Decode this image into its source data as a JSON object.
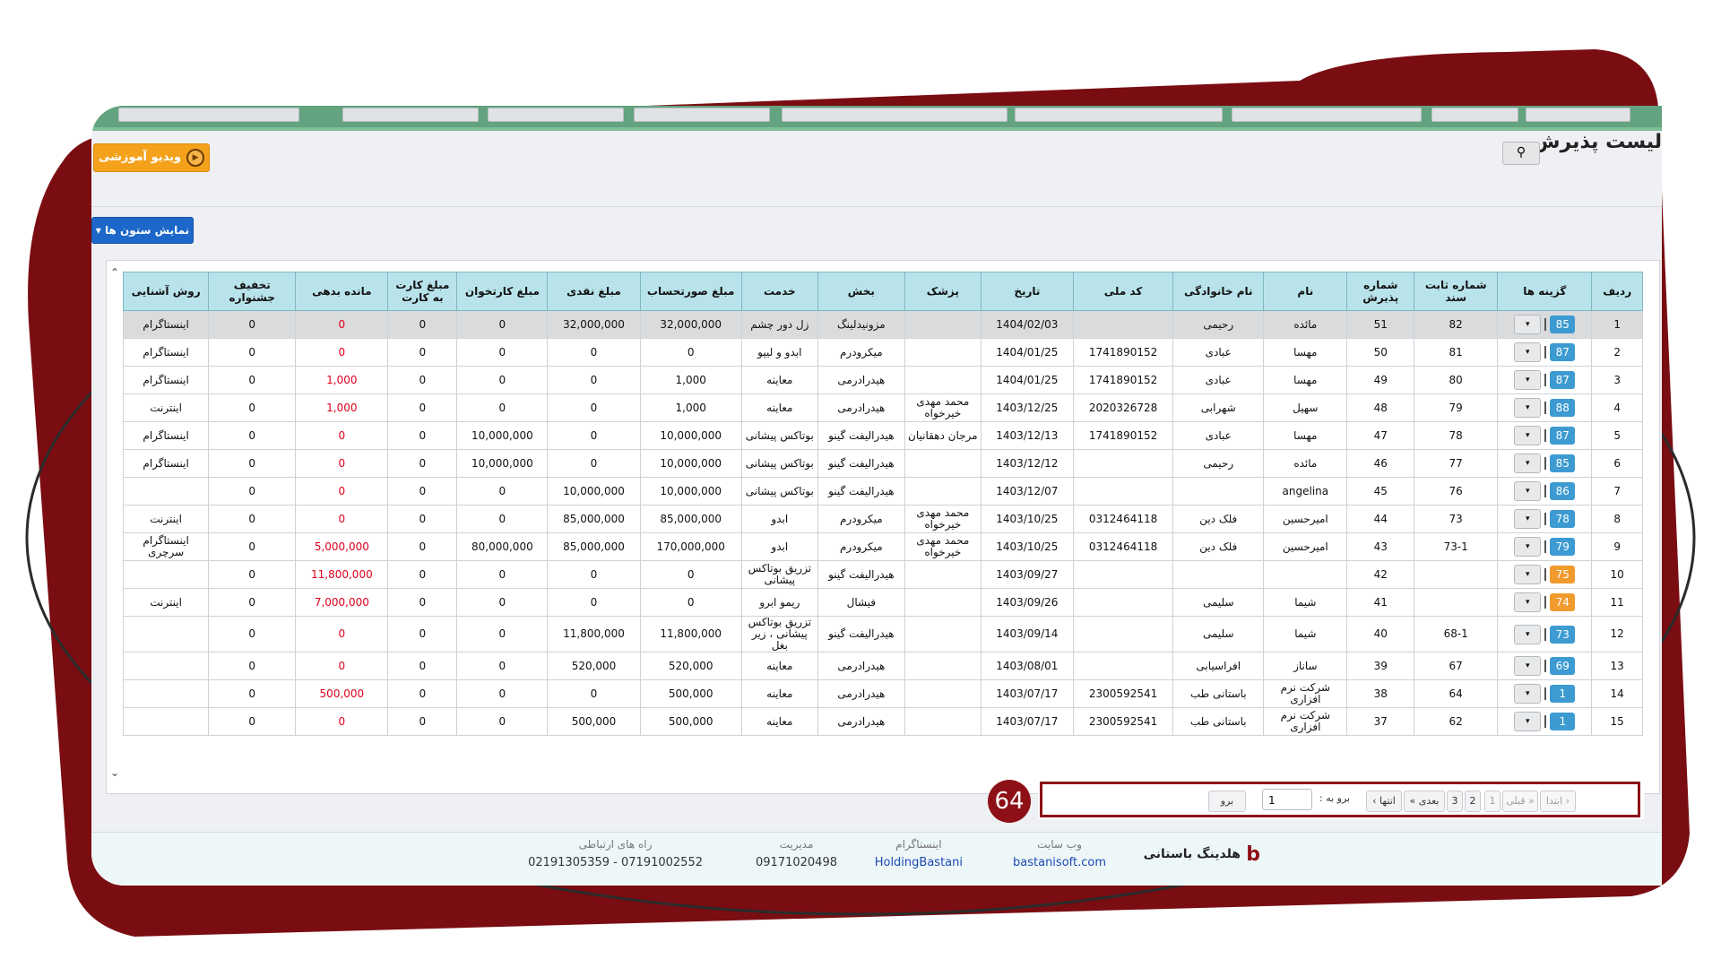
{
  "page": {
    "title": "لیست پذیرش",
    "video_button": "ویدیو آموزشی",
    "columns_button": "نمایش ستون ها"
  },
  "table": {
    "headers": [
      "ردیف",
      "گزینه ها",
      "شماره ثابت سند",
      "شماره پذیرش",
      "نام",
      "نام خانوادگی",
      "کد ملی",
      "تاریخ",
      "پزشک",
      "بخش",
      "خدمت",
      "مبلغ صورتحساب",
      "مبلغ نقدی",
      "مبلغ کارتخوان",
      "مبلغ کارت به کارت",
      "مانده بدهی",
      "تخفیف جشنواره",
      "روش آشنایی"
    ],
    "rows": [
      {
        "n": "1",
        "badge": "85",
        "color": "blue",
        "sanad": "82",
        "paz": "51",
        "name": "مائده",
        "family": "رحیمی",
        "code": "",
        "date": "1404/02/03",
        "doctor": "",
        "dept": "مزونیدلینگ",
        "service": "زل دور چشم",
        "bill": "32,000,000",
        "cash": "32,000,000",
        "pos": "0",
        "c2c": "0",
        "debt": "0",
        "disc": "0",
        "source": "اینستاگرام"
      },
      {
        "n": "2",
        "badge": "87",
        "color": "blue",
        "sanad": "81",
        "paz": "50",
        "name": "مهسا",
        "family": "عبادی",
        "code": "1741890152",
        "date": "1404/01/25",
        "doctor": "",
        "dept": "میکرودرم",
        "service": "ابدو و لیپو",
        "bill": "0",
        "cash": "0",
        "pos": "0",
        "c2c": "0",
        "debt": "0",
        "disc": "0",
        "source": "اینستاگرام"
      },
      {
        "n": "3",
        "badge": "87",
        "color": "blue",
        "sanad": "80",
        "paz": "49",
        "name": "مهسا",
        "family": "عبادی",
        "code": "1741890152",
        "date": "1404/01/25",
        "doctor": "",
        "dept": "هیدرادرمی",
        "service": "معاینه",
        "bill": "1,000",
        "cash": "0",
        "pos": "0",
        "c2c": "0",
        "debt": "1,000",
        "disc": "0",
        "source": "اینستاگرام"
      },
      {
        "n": "4",
        "badge": "88",
        "color": "blue",
        "sanad": "79",
        "paz": "48",
        "name": "سهیل",
        "family": "شهرابی",
        "code": "2020326728",
        "date": "1403/12/25",
        "doctor": "محمد مهدی خیرخواه",
        "dept": "هیدرادرمی",
        "service": "معاینه",
        "bill": "1,000",
        "cash": "0",
        "pos": "0",
        "c2c": "0",
        "debt": "1,000",
        "disc": "0",
        "source": "اینترنت"
      },
      {
        "n": "5",
        "badge": "87",
        "color": "blue",
        "sanad": "78",
        "paz": "47",
        "name": "مهسا",
        "family": "عبادی",
        "code": "1741890152",
        "date": "1403/12/13",
        "doctor": "مرجان دهقانیان",
        "dept": "هیدرالیفت گینو",
        "service": "بوتاکس پیشانی",
        "bill": "10,000,000",
        "cash": "0",
        "pos": "10,000,000",
        "c2c": "0",
        "debt": "0",
        "disc": "0",
        "source": "اینستاگرام"
      },
      {
        "n": "6",
        "badge": "85",
        "color": "blue",
        "sanad": "77",
        "paz": "46",
        "name": "مائده",
        "family": "رحیمی",
        "code": "",
        "date": "1403/12/12",
        "doctor": "",
        "dept": "هیدرالیفت گینو",
        "service": "بوتاکس پیشانی",
        "bill": "10,000,000",
        "cash": "0",
        "pos": "10,000,000",
        "c2c": "0",
        "debt": "0",
        "disc": "0",
        "source": "اینستاگرام"
      },
      {
        "n": "7",
        "badge": "86",
        "color": "blue",
        "sanad": "76",
        "paz": "45",
        "name": "angelina",
        "family": "",
        "code": "",
        "date": "1403/12/07",
        "doctor": "",
        "dept": "هیدرالیفت گینو",
        "service": "بوتاکس پیشانی",
        "bill": "10,000,000",
        "cash": "10,000,000",
        "pos": "0",
        "c2c": "0",
        "debt": "0",
        "disc": "0",
        "source": ""
      },
      {
        "n": "8",
        "badge": "78",
        "color": "blue",
        "sanad": "73",
        "paz": "44",
        "name": "امیرحسین",
        "family": "فلک دین",
        "code": "0312464118",
        "date": "1403/10/25",
        "doctor": "محمد مهدی خیرخواه",
        "dept": "میکرودرم",
        "service": "ابدو",
        "bill": "85,000,000",
        "cash": "85,000,000",
        "pos": "0",
        "c2c": "0",
        "debt": "0",
        "disc": "0",
        "source": "اینترنت"
      },
      {
        "n": "9",
        "badge": "79",
        "color": "blue",
        "sanad": "73-1",
        "paz": "43",
        "name": "امیرحسین",
        "family": "فلک دین",
        "code": "0312464118",
        "date": "1403/10/25",
        "doctor": "محمد مهدی خیرخواه",
        "dept": "میکرودرم",
        "service": "ابدو",
        "bill": "170,000,000",
        "cash": "85,000,000",
        "pos": "80,000,000",
        "c2c": "0",
        "debt": "5,000,000",
        "disc": "0",
        "source": "اینستاگرام سرچری"
      },
      {
        "n": "10",
        "badge": "75",
        "color": "orange",
        "sanad": "",
        "paz": "42",
        "name": "",
        "family": "",
        "code": "",
        "date": "1403/09/27",
        "doctor": "",
        "dept": "هیدرالیفت گینو",
        "service": "تزریق بوتاکس پیشانی",
        "bill": "0",
        "cash": "0",
        "pos": "0",
        "c2c": "0",
        "debt": "11,800,000",
        "disc": "0",
        "source": ""
      },
      {
        "n": "11",
        "badge": "74",
        "color": "orange",
        "sanad": "",
        "paz": "41",
        "name": "شیما",
        "family": "سلیمی",
        "code": "",
        "date": "1403/09/26",
        "doctor": "",
        "dept": "فیشال",
        "service": "ریمو ابرو",
        "bill": "0",
        "cash": "0",
        "pos": "0",
        "c2c": "0",
        "debt": "7,000,000",
        "disc": "0",
        "source": "اینترنت"
      },
      {
        "n": "12",
        "badge": "73",
        "color": "blue",
        "sanad": "68-1",
        "paz": "40",
        "name": "شیما",
        "family": "سلیمی",
        "code": "",
        "date": "1403/09/14",
        "doctor": "",
        "dept": "هیدرالیفت گینو",
        "service": "تزریق بوتاکس پیشانی ، زیر بغل",
        "bill": "11,800,000",
        "cash": "11,800,000",
        "pos": "0",
        "c2c": "0",
        "debt": "0",
        "disc": "0",
        "source": ""
      },
      {
        "n": "13",
        "badge": "69",
        "color": "blue",
        "sanad": "67",
        "paz": "39",
        "name": "ساناز",
        "family": "افراسیابی",
        "code": "",
        "date": "1403/08/01",
        "doctor": "",
        "dept": "هیدرادرمی",
        "service": "معاینه",
        "bill": "520,000",
        "cash": "520,000",
        "pos": "0",
        "c2c": "0",
        "debt": "0",
        "disc": "0",
        "source": ""
      },
      {
        "n": "14",
        "badge": "1",
        "color": "blue",
        "sanad": "64",
        "paz": "38",
        "name": "شرکت نرم افزاری",
        "family": "باستانی طب",
        "code": "2300592541",
        "date": "1403/07/17",
        "doctor": "",
        "dept": "هیدرادرمی",
        "service": "معاینه",
        "bill": "500,000",
        "cash": "0",
        "pos": "0",
        "c2c": "0",
        "debt": "500,000",
        "disc": "0",
        "source": ""
      },
      {
        "n": "15",
        "badge": "1",
        "color": "blue",
        "sanad": "62",
        "paz": "37",
        "name": "شرکت نرم افزاری",
        "family": "باستانی طب",
        "code": "2300592541",
        "date": "1403/07/17",
        "doctor": "",
        "dept": "هیدرادرمی",
        "service": "معاینه",
        "bill": "500,000",
        "cash": "500,000",
        "pos": "0",
        "c2c": "0",
        "debt": "0",
        "disc": "0",
        "source": ""
      }
    ]
  },
  "pager": {
    "first": "‹ ابتدا",
    "prev": "« قبلی",
    "p1": "1",
    "p2": "2",
    "p3": "3",
    "next": "بعدی »",
    "last": "انتها ›",
    "goto_label": "برو به :",
    "goto_value": "1",
    "go": "برو",
    "annotation": "64"
  },
  "footer": {
    "brand": "هلدینگ باستانی",
    "website_label": "وب سایت",
    "website_value": "bastanisoft.com",
    "instagram_label": "اینستاگرام",
    "instagram_value": "HoldingBastani",
    "management_label": "مدیریت",
    "management_value": "09171020498",
    "contact_label": "راه های ارتباطی",
    "contact_value": "07191002552 - 02191305359"
  },
  "colors": {
    "frame": "#7a0d12",
    "accent": "#63a37f",
    "header_bg": "#b9e3eb",
    "debt_red": "#e0001b"
  }
}
